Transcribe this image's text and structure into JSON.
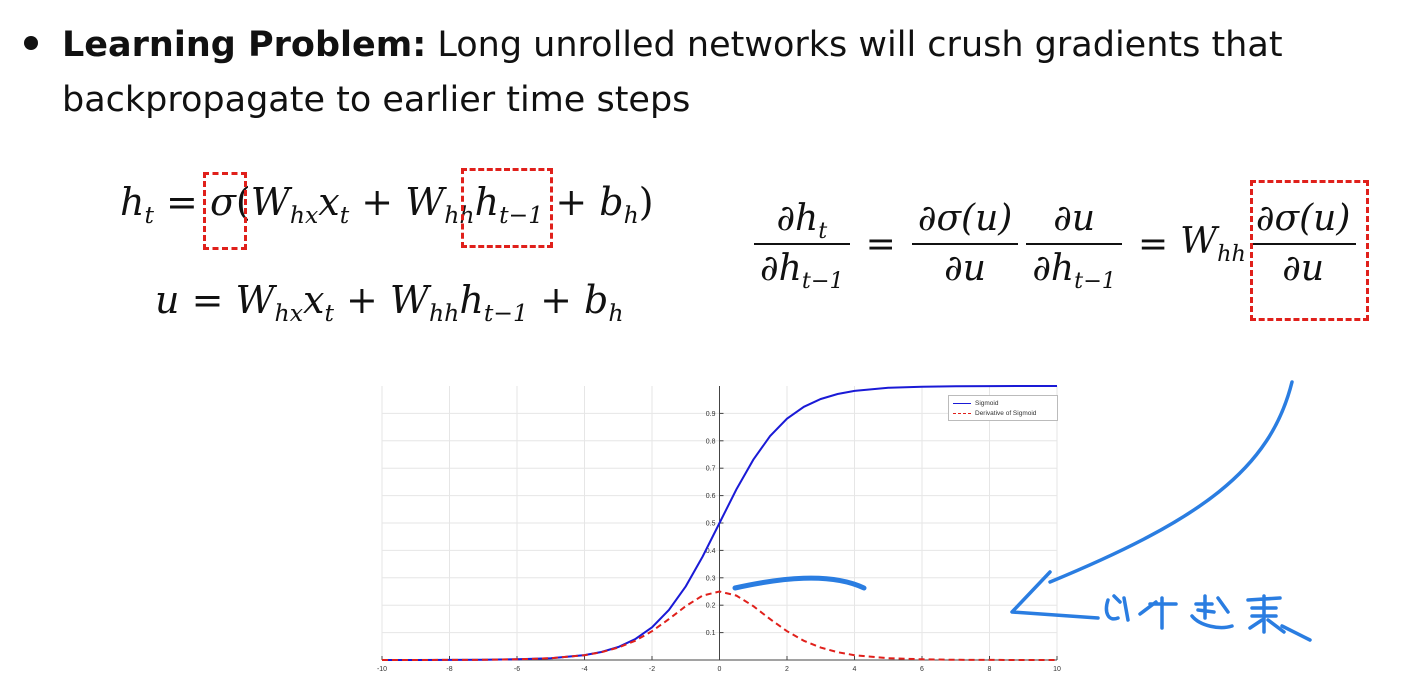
{
  "bullet": {
    "lead": "Learning Problem:",
    "text": "Long unrolled networks will crush gradients that backpropagate to earlier time steps"
  },
  "colors": {
    "accent_red": "#e0201b",
    "sigmoid_line": "#1a1ad6",
    "derivative_line": "#e0201b",
    "ink_annotation": "#2a7de1"
  },
  "chart_data": {
    "type": "line",
    "x": [
      -10,
      -9,
      -8,
      -7,
      -6,
      -5,
      -4,
      -3.5,
      -3,
      -2.5,
      -2,
      -1.5,
      -1,
      -0.5,
      0,
      0.5,
      1,
      1.5,
      2,
      2.5,
      3,
      3.5,
      4,
      5,
      6,
      7,
      8,
      9,
      10
    ],
    "series": [
      {
        "name": "Sigmoid",
        "values": [
          4.54e-05,
          0.0001234,
          0.000335,
          0.000911,
          0.00247,
          0.00669,
          0.018,
          0.0293,
          0.0474,
          0.0759,
          0.1192,
          0.1824,
          0.2689,
          0.3775,
          0.5,
          0.6225,
          0.7311,
          0.8176,
          0.8808,
          0.9241,
          0.9526,
          0.9707,
          0.982,
          0.9933,
          0.9975,
          0.9991,
          0.9997,
          0.9999,
          1.0
        ],
        "style": "solid"
      },
      {
        "name": "Derivative of Sigmoid",
        "values": [
          4.54e-05,
          0.0001234,
          0.000335,
          0.00091,
          0.00247,
          0.00665,
          0.0177,
          0.0285,
          0.0452,
          0.0701,
          0.105,
          0.1491,
          0.1966,
          0.235,
          0.25,
          0.235,
          0.1966,
          0.1491,
          0.105,
          0.0701,
          0.0452,
          0.0285,
          0.0177,
          0.00665,
          0.00247,
          0.00091,
          0.000335,
          0.0001234,
          4.54e-05
        ],
        "style": "dashed"
      }
    ],
    "xticks": [
      -10,
      -8,
      -6,
      -4,
      -2,
      0,
      2,
      4,
      6,
      8,
      10
    ],
    "xtick_labels": [
      "-10",
      "-8",
      "-6",
      "-4",
      "-2",
      "0",
      "2",
      "4",
      "6",
      "8",
      "10"
    ],
    "yticks": [
      0.1,
      0.2,
      0.3,
      0.4,
      0.5,
      0.6,
      0.7,
      0.8,
      0.9
    ],
    "ytick_labels": [
      "0.1",
      "0.2",
      "0.3",
      "0.4",
      "0.5",
      "0.6",
      "0.7",
      "0.8",
      "0.9"
    ],
    "xlim": [
      -10,
      10
    ],
    "ylim": [
      0,
      1
    ],
    "grid": true,
    "legend_position": "top-right",
    "title": "",
    "xlabel": "",
    "ylabel": ""
  },
  "annotation": {
    "handwritten_note": "小于 1 逐渐变小"
  }
}
